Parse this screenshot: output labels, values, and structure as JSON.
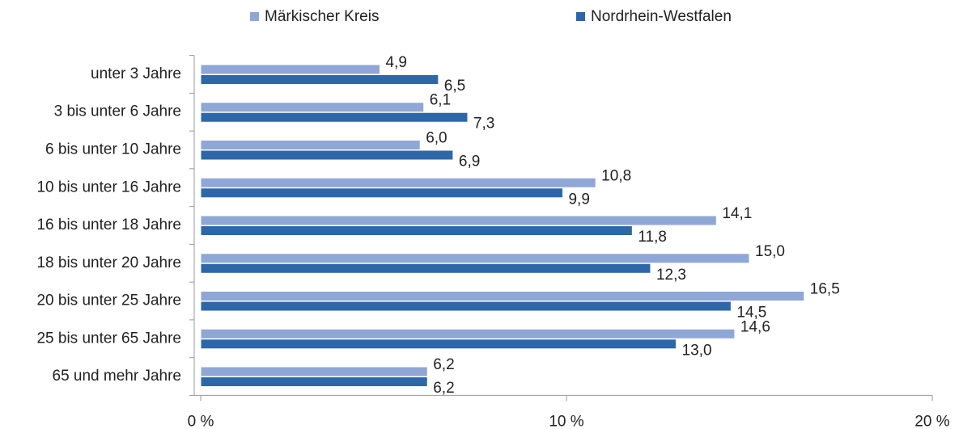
{
  "chart_data": {
    "type": "hbar",
    "categories": [
      "unter 3 Jahre",
      "3 bis unter 6 Jahre",
      "6 bis unter 10 Jahre",
      "10 bis unter 16 Jahre",
      "16 bis unter 18 Jahre",
      "18 bis unter 20 Jahre",
      "20 bis unter 25 Jahre",
      "25 bis unter 65 Jahre",
      "65 und mehr Jahre"
    ],
    "series": [
      {
        "name": "Märkischer Kreis",
        "color": "#8fa7d6",
        "values": [
          4.9,
          6.1,
          6.0,
          10.8,
          14.1,
          15.0,
          16.5,
          14.6,
          6.2
        ],
        "value_labels": [
          "4,9",
          "6,1",
          "6,0",
          "10,8",
          "14,1",
          "15,0",
          "16,5",
          "14,6",
          "6,2"
        ]
      },
      {
        "name": "Nordrhein-Westfalen",
        "color": "#2d67a8",
        "values": [
          6.5,
          7.3,
          6.9,
          9.9,
          11.8,
          12.3,
          14.5,
          13.0,
          6.2
        ],
        "value_labels": [
          "6,5",
          "7,3",
          "6,9",
          "9,9",
          "11,8",
          "12,3",
          "14,5",
          "13,0",
          "6,2"
        ]
      }
    ],
    "xlim": [
      0,
      20
    ],
    "xticks": [
      {
        "value": 0,
        "label": "0 %"
      },
      {
        "value": 10,
        "label": "10 %"
      },
      {
        "value": 20,
        "label": "20 %"
      }
    ],
    "legend": "top"
  }
}
